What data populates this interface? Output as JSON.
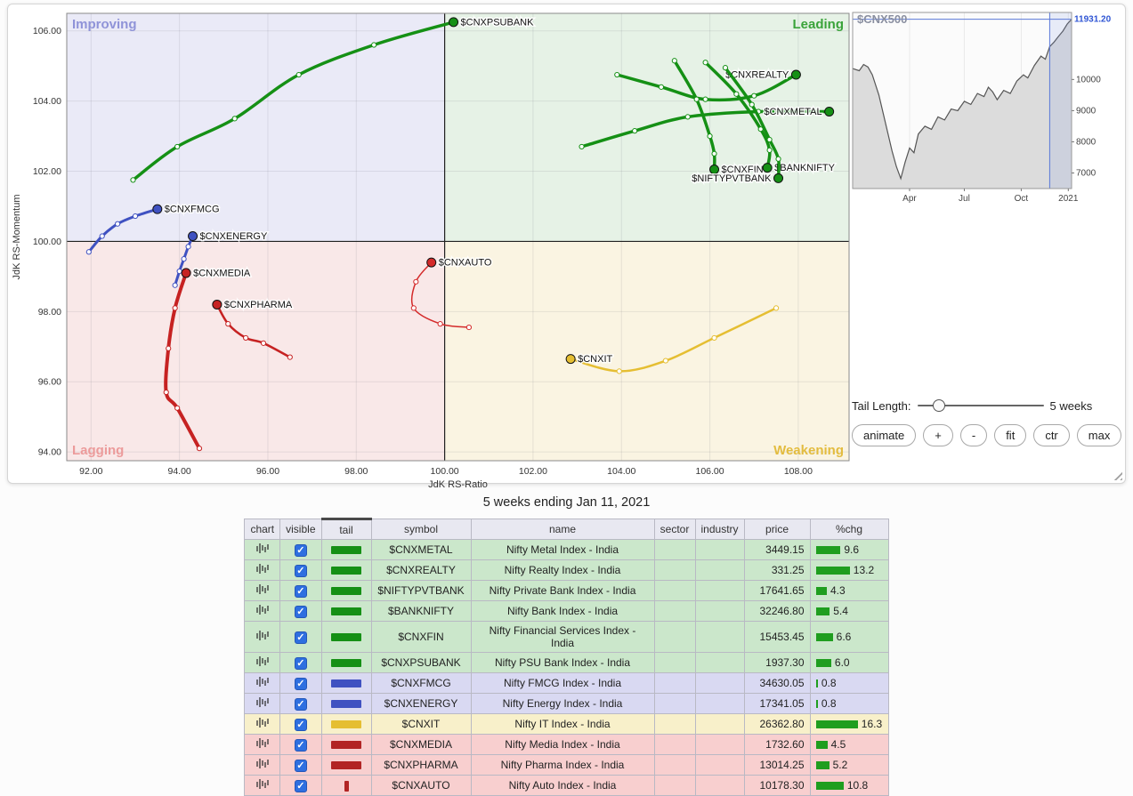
{
  "subtitle": "5 weeks ending Jan 11, 2021",
  "controls": {
    "tail_length_label": "Tail Length:",
    "tail_length_value": "5 weeks",
    "slider": {
      "min": 1,
      "max": 30,
      "value": 5
    },
    "buttons": [
      {
        "label": "animate",
        "name": "animate-button"
      },
      {
        "label": "+",
        "name": "zoom-in-button"
      },
      {
        "label": "-",
        "name": "zoom-out-button"
      },
      {
        "label": "fit",
        "name": "fit-button"
      },
      {
        "label": "ctr",
        "name": "ctr-button"
      },
      {
        "label": "max",
        "name": "max-button"
      }
    ]
  },
  "chart_data": [
    {
      "id": "rrg",
      "type": "scatter",
      "xlabel": "JdK RS-Ratio",
      "ylabel": "JdK RS-Momentum",
      "xlim": [
        91.45,
        109.15
      ],
      "ylim": [
        93.75,
        106.5
      ],
      "xticks": [
        92,
        94,
        96,
        98,
        100,
        102,
        104,
        106,
        108
      ],
      "yticks": [
        94,
        96,
        98,
        100,
        102,
        104,
        106
      ],
      "center": [
        100,
        100
      ],
      "quadrants": [
        {
          "name": "Improving",
          "corner": "top-left",
          "bg": "#eaeaf7",
          "label_color": "#8f93d8"
        },
        {
          "name": "Leading",
          "corner": "top-right",
          "bg": "#e6f2e6",
          "label_color": "#3aa33a"
        },
        {
          "name": "Lagging",
          "corner": "bottom-left",
          "bg": "#f9e8e8",
          "label_color": "#ec9b9b"
        },
        {
          "name": "Weakening",
          "corner": "bottom-right",
          "bg": "#faf4e2",
          "label_color": "#e3bc3f"
        }
      ],
      "series": [
        {
          "symbol": "$CNXPSUBANK",
          "color": "#159015",
          "width": 3.5,
          "label_side": "right",
          "points": [
            [
              92.95,
              101.75
            ],
            [
              93.95,
              102.7
            ],
            [
              95.25,
              103.5
            ],
            [
              96.7,
              104.75
            ],
            [
              98.4,
              105.6
            ],
            [
              100.2,
              106.25
            ]
          ]
        },
        {
          "symbol": "$CNXREALTY",
          "color": "#159015",
          "width": 3.5,
          "label_side": "left",
          "points": [
            [
              103.9,
              104.75
            ],
            [
              104.9,
              104.4
            ],
            [
              105.9,
              104.05
            ],
            [
              107.0,
              104.15
            ],
            [
              107.95,
              104.75
            ]
          ]
        },
        {
          "symbol": "$CNXMETAL",
          "color": "#159015",
          "width": 3.5,
          "label_side": "left",
          "points": [
            [
              103.1,
              102.7
            ],
            [
              104.3,
              103.15
            ],
            [
              105.5,
              103.55
            ],
            [
              107.1,
              103.7
            ],
            [
              108.7,
              103.7
            ]
          ]
        },
        {
          "symbol": "$CNXFIN",
          "color": "#159015",
          "width": 3.5,
          "label_side": "right",
          "points": [
            [
              105.2,
              105.15
            ],
            [
              105.7,
              104.05
            ],
            [
              106.0,
              103.0
            ],
            [
              106.1,
              102.5
            ],
            [
              106.1,
              102.05
            ]
          ]
        },
        {
          "symbol": "$BANKNIFTY",
          "color": "#159015",
          "width": 3.5,
          "label_side": "right",
          "points": [
            [
              105.9,
              105.1
            ],
            [
              106.6,
              104.2
            ],
            [
              107.15,
              103.2
            ],
            [
              107.35,
              102.6
            ],
            [
              107.3,
              102.1
            ]
          ]
        },
        {
          "symbol": "$NIFTYPVTBANK",
          "color": "#159015",
          "width": 3.5,
          "label_side": "left",
          "points": [
            [
              106.35,
              104.95
            ],
            [
              106.95,
              103.9
            ],
            [
              107.35,
              102.9
            ],
            [
              107.55,
              102.35
            ],
            [
              107.55,
              101.8
            ]
          ]
        },
        {
          "symbol": "$CNXFMCG",
          "color": "#3f51c1",
          "width": 3,
          "label_side": "right",
          "points": [
            [
              91.95,
              99.7
            ],
            [
              92.25,
              100.15
            ],
            [
              92.6,
              100.5
            ],
            [
              93.0,
              100.72
            ],
            [
              93.5,
              100.92
            ]
          ]
        },
        {
          "symbol": "$CNXENERGY",
          "color": "#3f51c1",
          "width": 3,
          "label_side": "right",
          "points": [
            [
              93.9,
              98.75
            ],
            [
              94.0,
              99.15
            ],
            [
              94.1,
              99.5
            ],
            [
              94.2,
              99.85
            ],
            [
              94.3,
              100.15
            ]
          ]
        },
        {
          "symbol": "$CNXMEDIA",
          "color": "#c62222",
          "width": 4,
          "label_side": "right",
          "points": [
            [
              94.45,
              94.1
            ],
            [
              93.95,
              95.25
            ],
            [
              93.7,
              95.7
            ],
            [
              93.75,
              96.95
            ],
            [
              93.9,
              98.1
            ],
            [
              94.15,
              99.1
            ]
          ]
        },
        {
          "symbol": "$CNXPHARMA",
          "color": "#c62222",
          "width": 2.5,
          "label_side": "right",
          "points": [
            [
              96.5,
              96.7
            ],
            [
              95.9,
              97.1
            ],
            [
              95.5,
              97.25
            ],
            [
              95.1,
              97.65
            ],
            [
              94.85,
              98.2
            ]
          ]
        },
        {
          "symbol": "$CNXAUTO",
          "color": "#d42a2a",
          "width": 1.5,
          "label_side": "right",
          "points": [
            [
              100.55,
              97.55
            ],
            [
              99.9,
              97.65
            ],
            [
              99.3,
              98.1
            ],
            [
              99.35,
              98.85
            ],
            [
              99.7,
              99.4
            ]
          ]
        },
        {
          "symbol": "$CNXIT",
          "color": "#e5be32",
          "width": 2.5,
          "label_side": "right",
          "points": [
            [
              107.5,
              98.1
            ],
            [
              106.1,
              97.25
            ],
            [
              105.0,
              96.6
            ],
            [
              103.95,
              96.3
            ],
            [
              102.85,
              96.65
            ]
          ]
        }
      ]
    },
    {
      "id": "cnx500",
      "type": "area",
      "title": "$CNX500",
      "current_value": "11931.20",
      "current_value_num": 11931.2,
      "ylim": [
        6500,
        12150
      ],
      "yticks": [
        10000,
        9000,
        8000,
        7000
      ],
      "xticks": [
        {
          "label": "Apr",
          "t": 0.26
        },
        {
          "label": "Jul",
          "t": 0.51
        },
        {
          "label": "Oct",
          "t": 0.77
        },
        {
          "label": "2021",
          "t": 0.985
        }
      ],
      "selection": [
        0.9,
        1.0
      ],
      "points": [
        [
          0,
          10350
        ],
        [
          0.03,
          10280
        ],
        [
          0.05,
          10480
        ],
        [
          0.07,
          10400
        ],
        [
          0.09,
          10150
        ],
        [
          0.12,
          9500
        ],
        [
          0.15,
          8600
        ],
        [
          0.18,
          7700
        ],
        [
          0.2,
          7200
        ],
        [
          0.22,
          6820
        ],
        [
          0.24,
          7350
        ],
        [
          0.26,
          7800
        ],
        [
          0.28,
          7650
        ],
        [
          0.3,
          8250
        ],
        [
          0.33,
          8500
        ],
        [
          0.36,
          8400
        ],
        [
          0.39,
          8800
        ],
        [
          0.42,
          8700
        ],
        [
          0.45,
          9050
        ],
        [
          0.48,
          9000
        ],
        [
          0.51,
          9300
        ],
        [
          0.54,
          9200
        ],
        [
          0.57,
          9550
        ],
        [
          0.6,
          9450
        ],
        [
          0.62,
          9750
        ],
        [
          0.64,
          9600
        ],
        [
          0.66,
          9350
        ],
        [
          0.69,
          9650
        ],
        [
          0.72,
          9550
        ],
        [
          0.75,
          9950
        ],
        [
          0.78,
          10150
        ],
        [
          0.8,
          10050
        ],
        [
          0.83,
          10450
        ],
        [
          0.86,
          10750
        ],
        [
          0.88,
          10650
        ],
        [
          0.9,
          11050
        ],
        [
          0.92,
          11200
        ],
        [
          0.94,
          11380
        ],
        [
          0.96,
          11550
        ],
        [
          0.98,
          11780
        ],
        [
          1,
          11931
        ]
      ]
    }
  ],
  "table": {
    "headers": [
      "chart",
      "visible",
      "tail",
      "symbol",
      "name",
      "sector",
      "industry",
      "price",
      "%chg"
    ],
    "sorted_by": "tail",
    "chg_bar_color": "#1f9e1f",
    "groups": {
      "leading": {
        "row": "#cbe7cb",
        "tail": "#159015"
      },
      "improving": {
        "row": "#d9d9f2",
        "tail": "#3f51c1"
      },
      "weakening": {
        "row": "#f8f0ca",
        "tail": "#e5be32"
      },
      "lagging": {
        "row": "#f8cfcf",
        "tail": "#b22424"
      }
    },
    "rows": [
      {
        "symbol": "$CNXMETAL",
        "name": "Nifty Metal Index - India",
        "sector": "",
        "industry": "",
        "price": "3449.15",
        "chg": "9.6",
        "group": "leading"
      },
      {
        "symbol": "$CNXREALTY",
        "name": "Nifty Realty Index - India",
        "sector": "",
        "industry": "",
        "price": "331.25",
        "chg": "13.2",
        "group": "leading"
      },
      {
        "symbol": "$NIFTYPVTBANK",
        "name": "Nifty Private Bank Index - India",
        "sector": "",
        "industry": "",
        "price": "17641.65",
        "chg": "4.3",
        "group": "leading"
      },
      {
        "symbol": "$BANKNIFTY",
        "name": "Nifty Bank Index - India",
        "sector": "",
        "industry": "",
        "price": "32246.80",
        "chg": "5.4",
        "group": "leading"
      },
      {
        "symbol": "$CNXFIN",
        "name": "Nifty Financial Services Index - India",
        "sector": "",
        "industry": "",
        "price": "15453.45",
        "chg": "6.6",
        "group": "leading"
      },
      {
        "symbol": "$CNXPSUBANK",
        "name": "Nifty PSU Bank Index - India",
        "sector": "",
        "industry": "",
        "price": "1937.30",
        "chg": "6.0",
        "group": "leading"
      },
      {
        "symbol": "$CNXFMCG",
        "name": "Nifty FMCG Index - India",
        "sector": "",
        "industry": "",
        "price": "34630.05",
        "chg": "0.8",
        "group": "improving"
      },
      {
        "symbol": "$CNXENERGY",
        "name": "Nifty Energy Index - India",
        "sector": "",
        "industry": "",
        "price": "17341.05",
        "chg": "0.8",
        "group": "improving"
      },
      {
        "symbol": "$CNXIT",
        "name": "Nifty IT Index - India",
        "sector": "",
        "industry": "",
        "price": "26362.80",
        "chg": "16.3",
        "group": "weakening"
      },
      {
        "symbol": "$CNXMEDIA",
        "name": "Nifty Media Index - India",
        "sector": "",
        "industry": "",
        "price": "1732.60",
        "chg": "4.5",
        "group": "lagging"
      },
      {
        "symbol": "$CNXPHARMA",
        "name": "Nifty Pharma Index - India",
        "sector": "",
        "industry": "",
        "price": "13014.25",
        "chg": "5.2",
        "group": "lagging"
      },
      {
        "symbol": "$CNXAUTO",
        "name": "Nifty Auto Index - India",
        "sector": "",
        "industry": "",
        "price": "10178.30",
        "chg": "10.8",
        "group": "lagging",
        "tail_small": true
      }
    ]
  }
}
